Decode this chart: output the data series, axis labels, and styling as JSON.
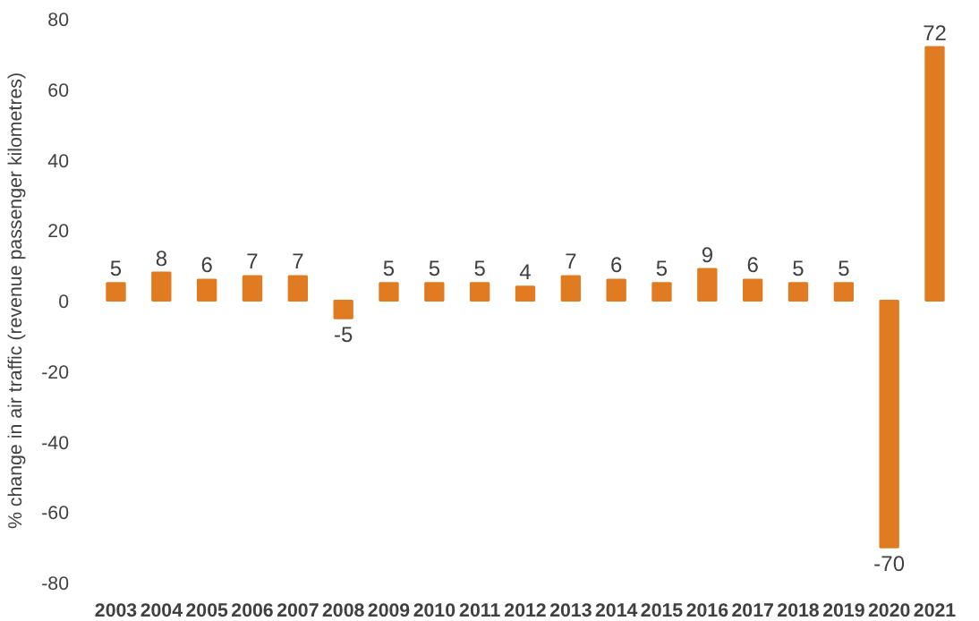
{
  "chart_data": {
    "type": "bar",
    "ylabel": "% change in air traffic (revenue passenger kilometres)",
    "categories": [
      "2003",
      "2004",
      "2005",
      "2006",
      "2007",
      "2008",
      "2009",
      "2010",
      "2011",
      "2012",
      "2013",
      "2014",
      "2015",
      "2016",
      "2017",
      "2018",
      "2019",
      "2020",
      "2021"
    ],
    "values": [
      5,
      8,
      6,
      7,
      7,
      -5,
      5,
      5,
      5,
      4,
      7,
      6,
      5,
      9,
      6,
      5,
      5,
      -70,
      72
    ],
    "color": "#e07b22",
    "ylim": [
      -80,
      80
    ],
    "yticks": [
      -80,
      -60,
      -40,
      -20,
      0,
      20,
      40,
      60,
      80
    ],
    "grid": false,
    "data_labels": true
  }
}
